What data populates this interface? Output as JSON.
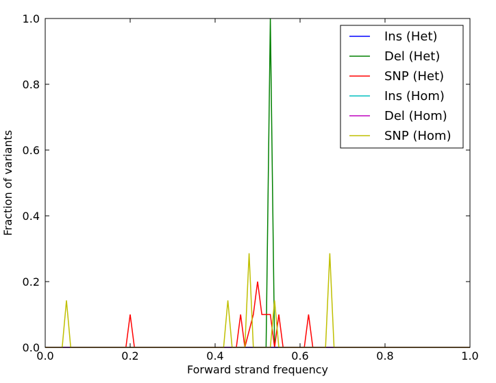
{
  "chart_data": {
    "type": "line",
    "title": "",
    "xlabel": "Forward strand frequency",
    "ylabel": "Fraction of variants",
    "xlim": [
      0.0,
      1.0
    ],
    "ylim": [
      0.0,
      1.0
    ],
    "xticks": [
      "0.0",
      "0.2",
      "0.4",
      "0.6",
      "0.8",
      "1.0"
    ],
    "yticks": [
      "0.0",
      "0.2",
      "0.4",
      "0.6",
      "0.8",
      "1.0"
    ],
    "grid": false,
    "legend_position": "top-right",
    "series": [
      {
        "name": "Ins (Het)",
        "color": "#0000ff",
        "x": [
          0.0,
          1.0
        ],
        "y": [
          0.0,
          0.0
        ]
      },
      {
        "name": "Del (Het)",
        "color": "#008000",
        "x": [
          0.0,
          0.52,
          0.53,
          0.54,
          1.0
        ],
        "y": [
          0.0,
          0.0,
          1.0,
          0.0,
          0.0
        ]
      },
      {
        "name": "SNP (Het)",
        "color": "#ff0000",
        "x": [
          0.0,
          0.19,
          0.2,
          0.21,
          0.45,
          0.46,
          0.47,
          0.49,
          0.5,
          0.51,
          0.52,
          0.53,
          0.54,
          0.55,
          0.56,
          0.61,
          0.62,
          0.63,
          1.0
        ],
        "y": [
          0.0,
          0.0,
          0.1,
          0.0,
          0.0,
          0.1,
          0.0,
          0.1,
          0.2,
          0.1,
          0.1,
          0.1,
          0.0,
          0.1,
          0.0,
          0.0,
          0.1,
          0.0,
          0.0
        ]
      },
      {
        "name": "Ins (Hom)",
        "color": "#00bfbf",
        "x": [
          0.0,
          1.0
        ],
        "y": [
          0.0,
          0.0
        ]
      },
      {
        "name": "Del (Hom)",
        "color": "#bf00bf",
        "x": [
          0.0,
          1.0
        ],
        "y": [
          0.0,
          0.0
        ]
      },
      {
        "name": "SNP (Hom)",
        "color": "#bfbf00",
        "x": [
          0.0,
          0.04,
          0.05,
          0.06,
          0.42,
          0.43,
          0.44,
          0.47,
          0.48,
          0.49,
          0.53,
          0.54,
          0.55,
          0.66,
          0.67,
          0.68,
          1.0
        ],
        "y": [
          0.0,
          0.0,
          0.143,
          0.0,
          0.0,
          0.143,
          0.0,
          0.0,
          0.286,
          0.0,
          0.0,
          0.143,
          0.0,
          0.0,
          0.286,
          0.0,
          0.0
        ]
      }
    ]
  }
}
